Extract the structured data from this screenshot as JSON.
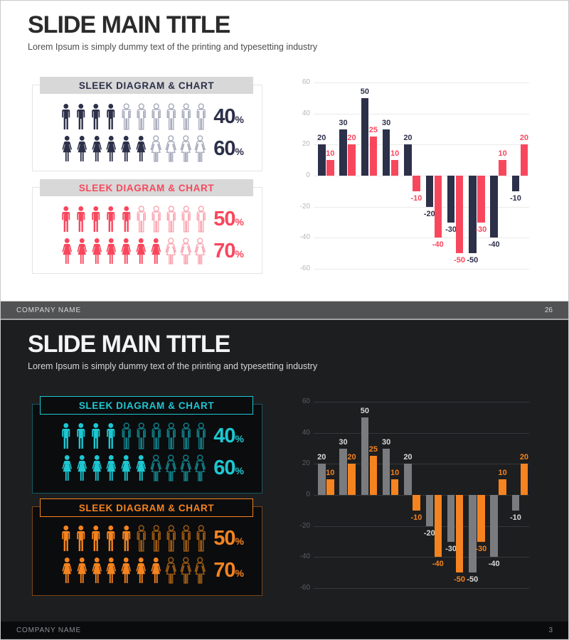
{
  "slides": [
    {
      "theme": "light",
      "background": "#ffffff",
      "title": "SLIDE MAIN TITLE",
      "title_color": "#2b2b2b",
      "subtitle": "Lorem Ipsum is simply dummy text of the printing and typesetting industry",
      "subtitle_color": "#4d4d4d",
      "sections": [
        {
          "header": "SLEEK DIAGRAM & CHART",
          "accent": "#2d3049",
          "outline": "#a9adbd",
          "box_border": "#e4e4e4",
          "rows": [
            {
              "icon": "male",
              "total": 10,
              "filled": 4,
              "percent": "40",
              "unit": "%"
            },
            {
              "icon": "female",
              "total": 10,
              "filled": 6,
              "percent": "60",
              "unit": "%"
            }
          ]
        },
        {
          "header": "SLEEK DIAGRAM & CHART",
          "accent": "#f8475d",
          "outline": "#f9a9b3",
          "box_border": "#e4e4e4",
          "rows": [
            {
              "icon": "male",
              "total": 10,
              "filled": 5,
              "percent": "50",
              "unit": "%"
            },
            {
              "icon": "female",
              "total": 10,
              "filled": 7,
              "percent": "70",
              "unit": "%"
            }
          ]
        }
      ],
      "footer": {
        "company": "COMPANY NAME",
        "page": "26",
        "bg": "#515254",
        "text_color": "#d9d9d9"
      }
    },
    {
      "theme": "dark",
      "background": "#1d1e20",
      "title": "SLIDE MAIN TITLE",
      "title_color": "#f4f4f4",
      "subtitle": "Lorem Ipsum is simply dummy text of the printing and typesetting industry",
      "subtitle_color": "#d6d6d6",
      "sections": [
        {
          "header": "SLEEK DIAGRAM & CHART",
          "accent": "#1dc7d1",
          "outline": "#107e86",
          "box_border": "#155a60",
          "rows": [
            {
              "icon": "male",
              "total": 10,
              "filled": 4,
              "percent": "40",
              "unit": "%"
            },
            {
              "icon": "female",
              "total": 10,
              "filled": 6,
              "percent": "60",
              "unit": "%"
            }
          ]
        },
        {
          "header": "SLEEK DIAGRAM & CHART",
          "accent": "#f5831f",
          "outline": "#9c5a14",
          "box_border": "#7a4617",
          "rows": [
            {
              "icon": "male",
              "total": 10,
              "filled": 5,
              "percent": "50",
              "unit": "%"
            },
            {
              "icon": "female",
              "total": 10,
              "filled": 7,
              "percent": "70",
              "unit": "%"
            }
          ]
        }
      ],
      "footer": {
        "company": "COMPANY NAME",
        "page": "3",
        "bg": "#0a0b0d",
        "text_color": "#8b8d90"
      }
    }
  ],
  "chart_data": [
    {
      "type": "bar",
      "n_groups": 10,
      "categories": [
        "",
        "",
        "",
        "",
        "",
        "",
        "",
        "",
        "",
        ""
      ],
      "series": [
        {
          "name": "series-1",
          "color": "#2d3049",
          "label_color": "#2d3049",
          "values": [
            20,
            30,
            50,
            30,
            20,
            -20,
            -30,
            -50,
            -40,
            -10
          ]
        },
        {
          "name": "series-2",
          "color": "#f8475d",
          "label_color": "#f8475d",
          "values": [
            10,
            20,
            25,
            10,
            -10,
            -40,
            -50,
            -30,
            10,
            20
          ]
        }
      ],
      "ylim": [
        -60,
        60
      ],
      "yticks": [
        60,
        40,
        20,
        0,
        -20,
        -40,
        -60
      ],
      "grid": true,
      "gridline_color": "#eaeaea",
      "tick_color": "#b6b6b6",
      "value_labels": true,
      "legend": "none",
      "x_labels_visible": false
    },
    {
      "type": "bar",
      "n_groups": 10,
      "categories": [
        "",
        "",
        "",
        "",
        "",
        "",
        "",
        "",
        "",
        ""
      ],
      "series": [
        {
          "name": "series-1",
          "color": "#797b7e",
          "label_color": "#d9d9d9",
          "values": [
            20,
            30,
            50,
            30,
            20,
            -20,
            -30,
            -50,
            -40,
            -10
          ]
        },
        {
          "name": "series-2",
          "color": "#f5831f",
          "label_color": "#f5831f",
          "values": [
            10,
            20,
            25,
            10,
            -10,
            -40,
            -50,
            -30,
            10,
            20
          ]
        }
      ],
      "ylim": [
        -60,
        60
      ],
      "yticks": [
        60,
        40,
        20,
        0,
        -20,
        -40,
        -60
      ],
      "grid": true,
      "gridline_color": "#35373a",
      "tick_color": "#5c5e62",
      "value_labels": true,
      "legend": "none",
      "x_labels_visible": false
    }
  ]
}
